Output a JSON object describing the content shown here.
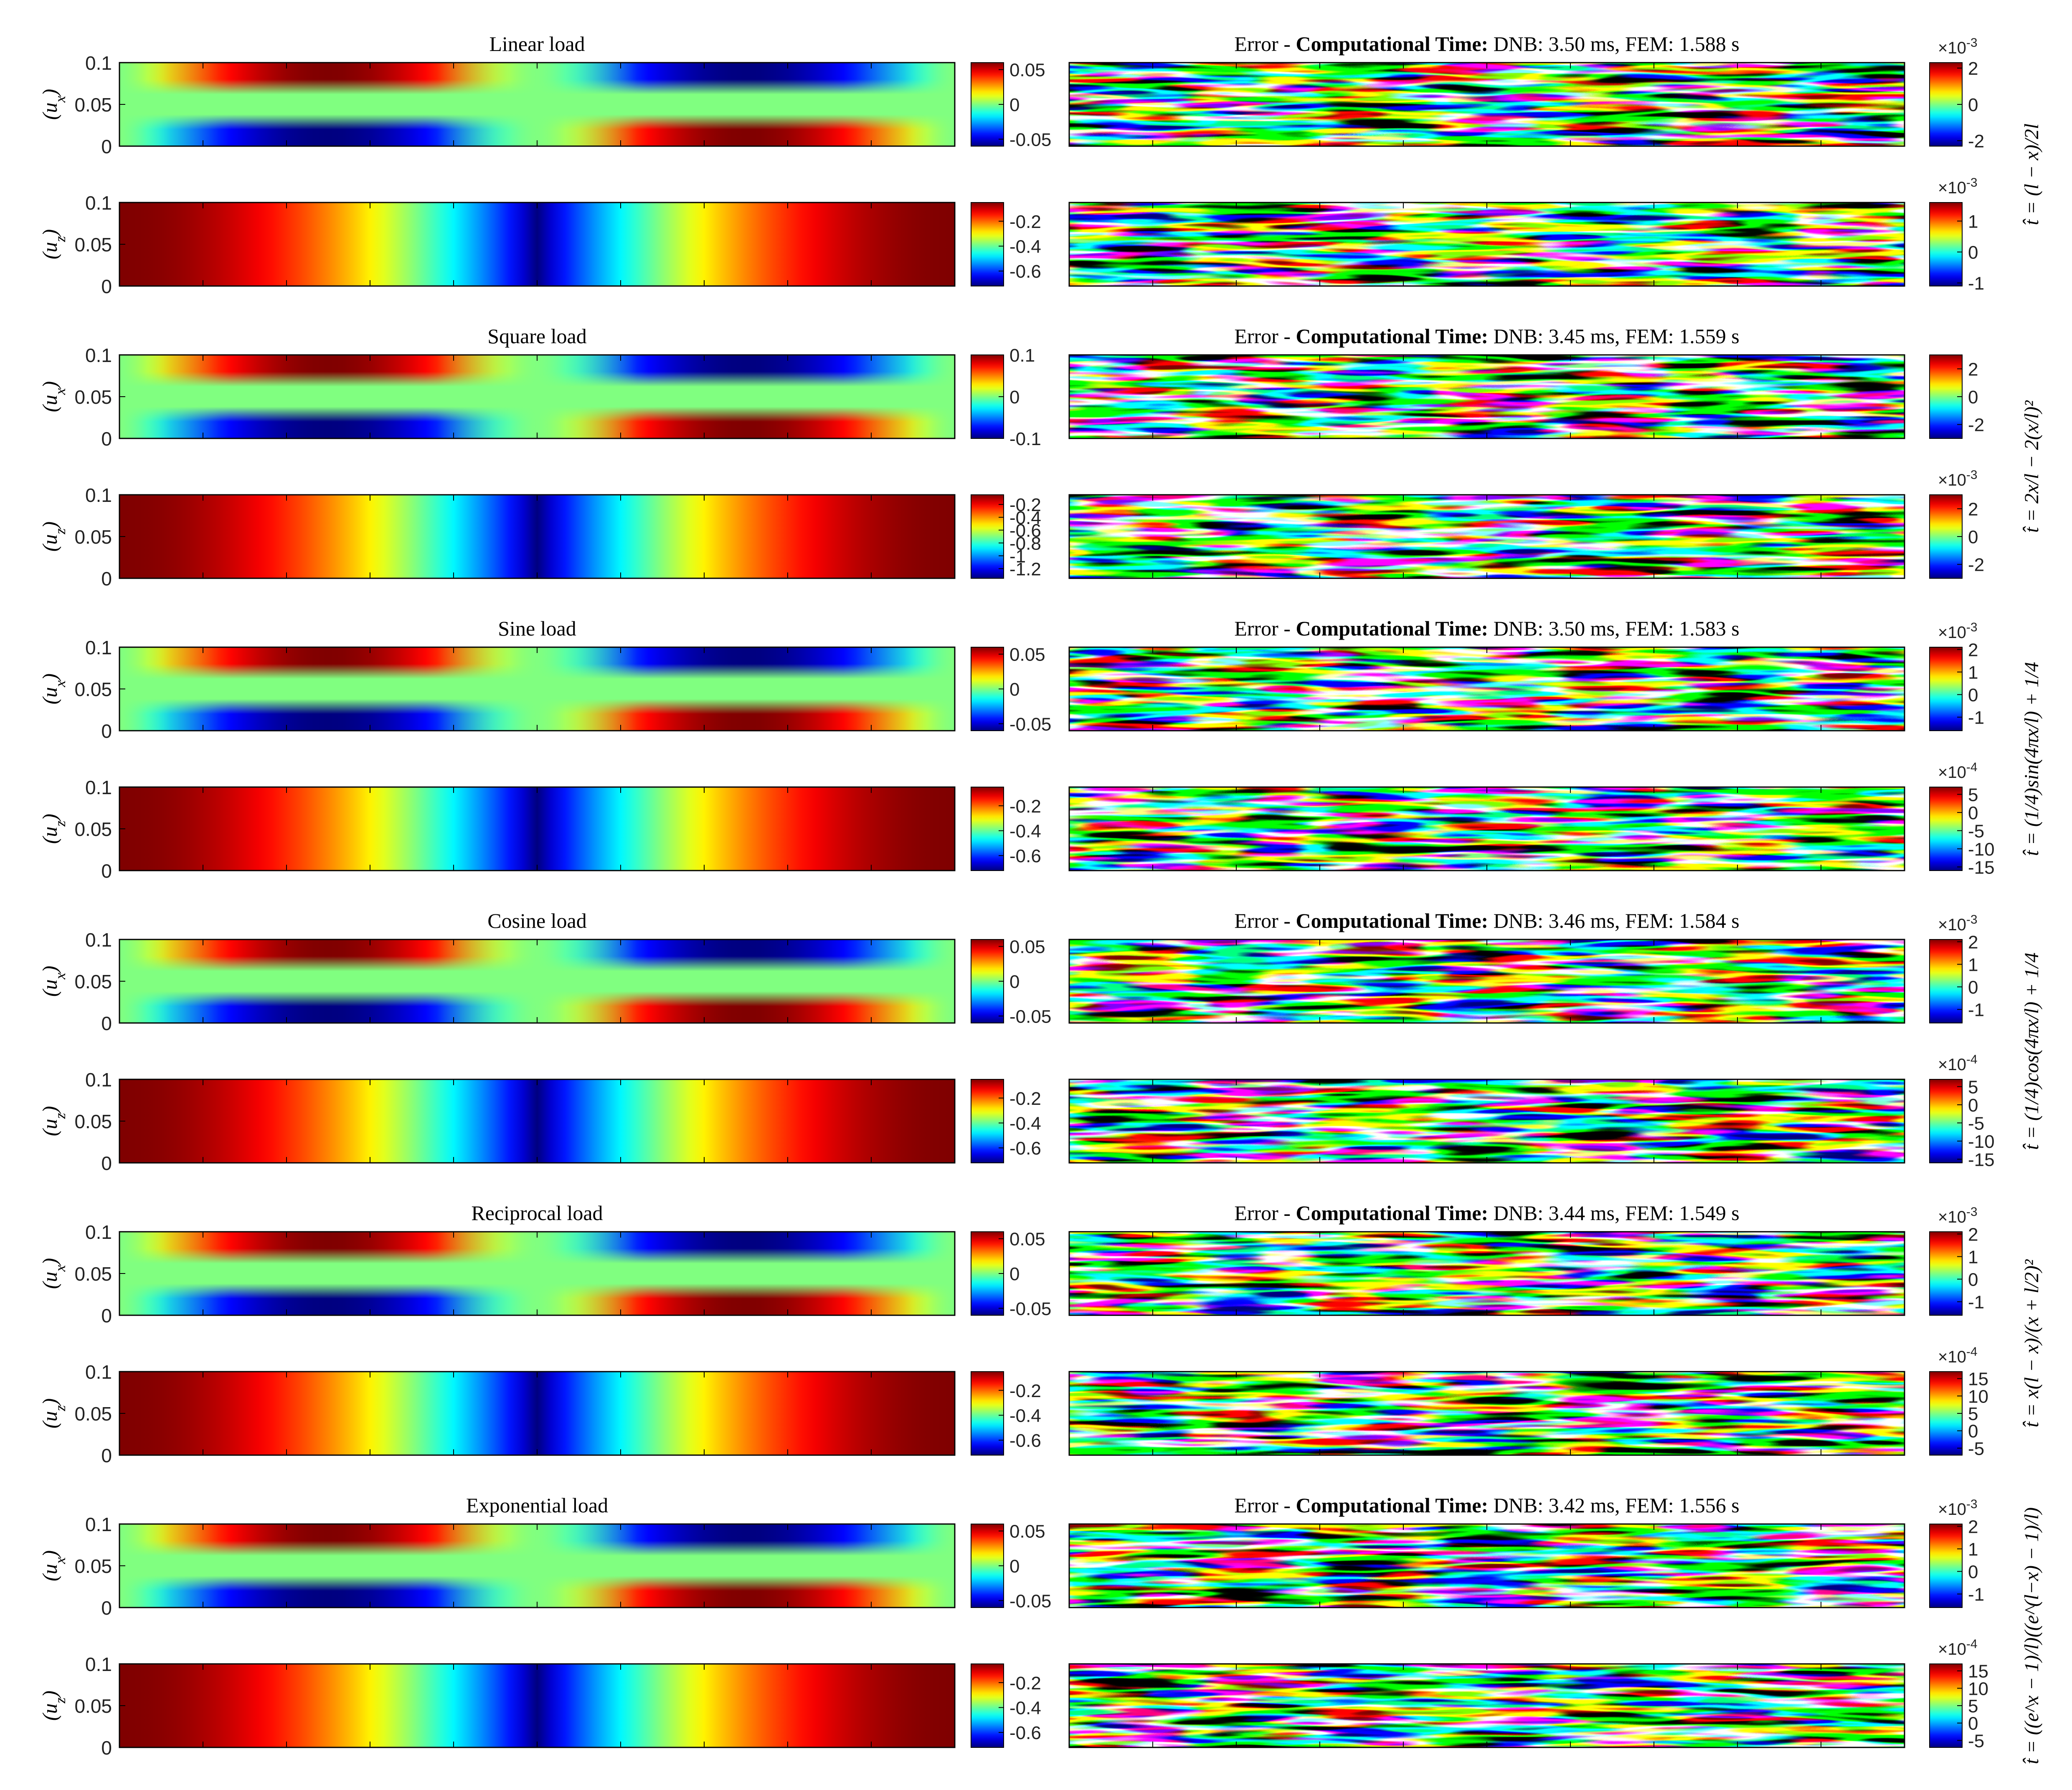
{
  "colors": {
    "axis": "#222222",
    "frame": "#000000"
  },
  "colormap": "jet",
  "y_ticks": [
    "0.1",
    "0.05",
    "0"
  ],
  "rows": [
    {
      "title": "Linear load",
      "error_prefix": "Error - ",
      "time_label": "Computational Time:",
      "time_values": " DNB: 3.50 ms, FEM: 1.588 s",
      "formula": "t̂ = (l − x)/2l",
      "ux": {
        "ylabel": "(u_x)",
        "cb_ticks": [
          "0.05",
          "0",
          "-0.05"
        ],
        "cb_range": [
          -0.06,
          0.06
        ]
      },
      "ux_err": {
        "cb_ticks": [
          "2",
          "0",
          "-2"
        ],
        "cb_range": [
          -2.3,
          2.3
        ],
        "exponent": "×10",
        "exp_power": "-3"
      },
      "uz": {
        "ylabel": "(u_z)",
        "cb_ticks": [
          "-0.2",
          "-0.4",
          "-0.6"
        ],
        "cb_range": [
          -0.72,
          -0.05
        ]
      },
      "uz_err": {
        "cb_ticks": [
          "1",
          "0",
          "-1"
        ],
        "cb_range": [
          -1.1,
          1.6
        ],
        "exponent": "×10",
        "exp_power": "-3"
      }
    },
    {
      "title": "Square load",
      "error_prefix": "Error - ",
      "time_label": "Computational Time:",
      "time_values": " DNB: 3.45 ms, FEM: 1.559 s",
      "formula": "t̂ = 2x/l − 2(x/l)²",
      "ux": {
        "ylabel": "(u_x)",
        "cb_ticks": [
          "0.1",
          "0",
          "-0.1"
        ],
        "cb_range": [
          -0.1,
          0.1
        ]
      },
      "ux_err": {
        "cb_ticks": [
          "2",
          "0",
          "-2"
        ],
        "cb_range": [
          -3,
          3
        ]
      },
      "uz": {
        "ylabel": "(u_z)",
        "cb_ticks": [
          "-0.2",
          "-0.4",
          "-0.6",
          "-0.8",
          "-1",
          "-1.2"
        ],
        "cb_range": [
          -1.35,
          -0.05
        ]
      },
      "uz_err": {
        "cb_ticks": [
          "2",
          "0",
          "-2"
        ],
        "cb_range": [
          -3,
          3
        ],
        "exponent": "×10",
        "exp_power": "-3"
      }
    },
    {
      "title": "Sine load",
      "error_prefix": "Error - ",
      "time_label": "Computational Time:",
      "time_values": " DNB: 3.50 ms, FEM: 1.583 s",
      "formula": "t̂ = (1/4)sin(4πx/l) + 1/4",
      "ux": {
        "ylabel": "(u_x)",
        "cb_ticks": [
          "0.05",
          "0",
          "-0.05"
        ],
        "cb_range": [
          -0.06,
          0.06
        ]
      },
      "ux_err": {
        "cb_ticks": [
          "2",
          "1",
          "0",
          "-1"
        ],
        "cb_range": [
          -1.6,
          2.1
        ],
        "exponent": "×10",
        "exp_power": "-3"
      },
      "uz": {
        "ylabel": "(u_z)",
        "cb_ticks": [
          "-0.2",
          "-0.4",
          "-0.6"
        ],
        "cb_range": [
          -0.72,
          -0.05
        ]
      },
      "uz_err": {
        "cb_ticks": [
          "5",
          "0",
          "-5",
          "-10",
          "-15"
        ],
        "cb_range": [
          -16,
          7
        ],
        "exponent": "×10",
        "exp_power": "-4"
      }
    },
    {
      "title": "Cosine load",
      "error_prefix": "Error - ",
      "time_label": "Computational Time:",
      "time_values": " DNB: 3.46 ms, FEM: 1.584 s",
      "formula": "t̂ = (1/4)cos(4πx/l) + 1/4",
      "ux": {
        "ylabel": "(u_x)",
        "cb_ticks": [
          "0.05",
          "0",
          "-0.05"
        ],
        "cb_range": [
          -0.06,
          0.06
        ]
      },
      "ux_err": {
        "cb_ticks": [
          "2",
          "1",
          "0",
          "-1"
        ],
        "cb_range": [
          -1.6,
          2.1
        ],
        "exponent": "×10",
        "exp_power": "-3"
      },
      "uz": {
        "ylabel": "(u_z)",
        "cb_ticks": [
          "-0.2",
          "-0.4",
          "-0.6"
        ],
        "cb_range": [
          -0.72,
          -0.05
        ]
      },
      "uz_err": {
        "cb_ticks": [
          "5",
          "0",
          "-5",
          "-10",
          "-15"
        ],
        "cb_range": [
          -16,
          7
        ],
        "exponent": "×10",
        "exp_power": "-4"
      }
    },
    {
      "title": "Reciprocal load",
      "error_prefix": "Error - ",
      "time_label": "Computational Time:",
      "time_values": " DNB: 3.44 ms, FEM: 1.549 s",
      "formula": "t̂ = x(l − x)/(x + l/2)²",
      "ux": {
        "ylabel": "(u_x)",
        "cb_ticks": [
          "0.05",
          "0",
          "-0.05"
        ],
        "cb_range": [
          -0.06,
          0.06
        ]
      },
      "ux_err": {
        "cb_ticks": [
          "2",
          "1",
          "0",
          "-1"
        ],
        "cb_range": [
          -1.6,
          2.1
        ],
        "exponent": "×10",
        "exp_power": "-3"
      },
      "uz": {
        "ylabel": "(u_z)",
        "cb_ticks": [
          "-0.2",
          "-0.4",
          "-0.6"
        ],
        "cb_range": [
          -0.72,
          -0.05
        ]
      },
      "uz_err": {
        "cb_ticks": [
          "15",
          "10",
          "5",
          "0",
          "-5"
        ],
        "cb_range": [
          -7,
          17
        ],
        "exponent": "×10",
        "exp_power": "-4"
      }
    },
    {
      "title": "Exponential load",
      "error_prefix": "Error - ",
      "time_label": "Computational Time:",
      "time_values": " DNB: 3.42 ms, FEM: 1.556 s",
      "formula": "t̂ = ((e^x − 1)/l)((e^(l−x) − 1)/l)",
      "ux": {
        "ylabel": "(u_x)",
        "cb_ticks": [
          "0.05",
          "0",
          "-0.05"
        ],
        "cb_range": [
          -0.06,
          0.06
        ]
      },
      "ux_err": {
        "cb_ticks": [
          "2",
          "1",
          "0",
          "-1"
        ],
        "cb_range": [
          -1.6,
          2.1
        ],
        "exponent": "×10",
        "exp_power": "-3"
      },
      "uz": {
        "ylabel": "(u_z)",
        "cb_ticks": [
          "-0.2",
          "-0.4",
          "-0.6"
        ],
        "cb_range": [
          -0.72,
          -0.05
        ]
      },
      "uz_err": {
        "cb_ticks": [
          "15",
          "10",
          "5",
          "0",
          "-5"
        ],
        "cb_range": [
          -7,
          17
        ],
        "exponent": "×10",
        "exp_power": "-4"
      }
    }
  ],
  "chart_data": {
    "type": "heatmap",
    "description_axes": "Each row: displacement fields u_x and u_z over a beam section (height 0 to 0.1) with DNB prediction error maps on the right.",
    "ylim": [
      0,
      0.1
    ],
    "grid": false,
    "legend": "colorbar-right"
  }
}
